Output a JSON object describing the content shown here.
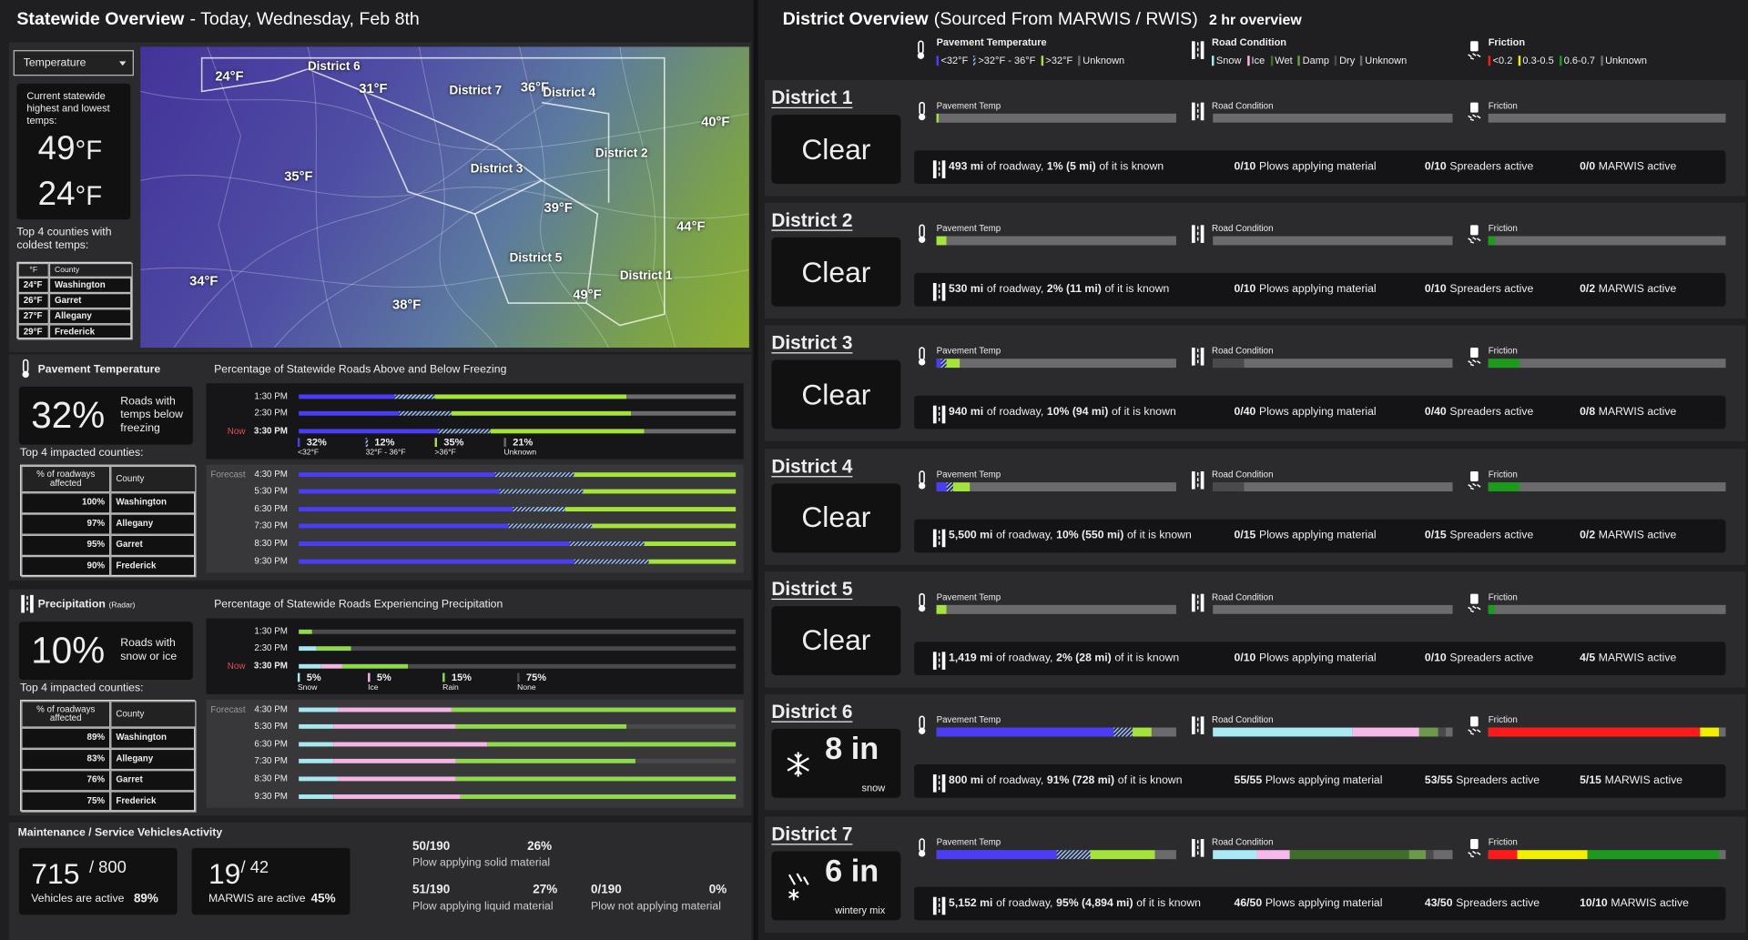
{
  "header": {
    "title": "Statewide Overview",
    "subtitle": "- Today, Wednesday, Feb 8th"
  },
  "temps": {
    "dropdown": "Temperature",
    "caption": "Current statewide highest and lowest temps:",
    "high": 49,
    "low": 24,
    "unit": "°F",
    "coldest_caption": "Top 4 counties with coldest temps:",
    "table": {
      "header": [
        "°F",
        "County"
      ],
      "rows": [
        [
          "24°F",
          "Washington"
        ],
        [
          "26°F",
          "Garret"
        ],
        [
          "27°F",
          "Allegany"
        ],
        [
          "29°F",
          "Frederick"
        ]
      ]
    }
  },
  "map": {
    "labels": [
      "24°F",
      "District 6",
      "31°F",
      "District 7",
      "36°F",
      "District 4",
      "40°F",
      "35°F",
      "District 2",
      "District 3",
      "39°F",
      "44°F",
      "District 5",
      "District 1",
      "34°F",
      "38°F",
      "49°F"
    ]
  },
  "pavement": {
    "title": "Pavement Temperature",
    "stat": 32,
    "stat_unit": "%",
    "stat_caption": "Roads with temps below freezing",
    "counties_caption": "Top 4 impacted counties:",
    "table": {
      "header": [
        "% of roadways affected",
        "County"
      ],
      "rows": [
        [
          "100%",
          "Washington"
        ],
        [
          "97%",
          "Allegany"
        ],
        [
          "95%",
          "Garret"
        ],
        [
          "90%",
          "Frederick"
        ]
      ]
    },
    "chart": {
      "type": "bar",
      "title": "Percentage of Statewide Roads Above and Below Freezing",
      "now": "Now",
      "forecast": "Forecast",
      "categories": [
        "1:30 PM",
        "2:30 PM",
        "3:30 PM",
        "4:30 PM",
        "5:30 PM",
        "6:30 PM",
        "7:30 PM",
        "8:30 PM",
        "9:30 PM"
      ],
      "series": [
        {
          "name": "<32°F",
          "color": "#4a3df5",
          "values": [
            22,
            23,
            32,
            45,
            46,
            49,
            48,
            62,
            63
          ],
          "value_labels": [
            null,
            null,
            "32%",
            null,
            null,
            null,
            null,
            null,
            null
          ]
        },
        {
          "name": "32°F - 36°F",
          "color": "#9ec1e6",
          "pattern": "hatch",
          "values": [
            9,
            12,
            12,
            18,
            19,
            12,
            19,
            17,
            17
          ],
          "value_labels": [
            null,
            null,
            "12%",
            null,
            null,
            null,
            null,
            null,
            null
          ]
        },
        {
          "name": ">36°F",
          "color": "#a4e33a",
          "values": [
            44,
            41,
            35,
            37,
            35,
            39,
            33,
            21,
            20
          ],
          "value_labels": [
            null,
            null,
            "35%",
            null,
            null,
            null,
            null,
            null,
            null
          ]
        },
        {
          "name": "Unknown",
          "color": "#6b6b6e",
          "values": [
            25,
            24,
            21,
            0,
            0,
            0,
            0,
            0,
            0
          ],
          "value_labels": [
            null,
            null,
            "21%",
            null,
            null,
            null,
            null,
            null,
            null
          ]
        }
      ]
    }
  },
  "precipitation": {
    "title": "Precipitation",
    "title_note": "(Radar)",
    "stat": 10,
    "stat_unit": "%",
    "stat_caption": "Roads with snow or ice",
    "counties_caption": "Top 4 impacted counties:",
    "table": {
      "header": [
        "% of roadways affected",
        "County"
      ],
      "rows": [
        [
          "89%",
          "Washington"
        ],
        [
          "83%",
          "Allegany"
        ],
        [
          "76%",
          "Garret"
        ],
        [
          "75%",
          "Frederick"
        ]
      ]
    },
    "chart": {
      "type": "bar",
      "title": "Percentage of Statewide Roads Experiencing Precipitation",
      "now": "Now",
      "forecast": "Forecast",
      "categories": [
        "1:30 PM",
        "2:30 PM",
        "3:30 PM",
        "4:30 PM",
        "5:30 PM",
        "6:30 PM",
        "7:30 PM",
        "8:30 PM",
        "9:30 PM"
      ],
      "series": [
        {
          "name": "Snow",
          "color": "#a8e6f0",
          "values": [
            0,
            4,
            5,
            9,
            8,
            8,
            8,
            9,
            8
          ],
          "value_labels": [
            null,
            null,
            "5%",
            null,
            null,
            null,
            null,
            null,
            null
          ]
        },
        {
          "name": "Ice",
          "color": "#f4b4e4",
          "values": [
            0,
            0,
            5,
            26,
            28,
            35,
            28,
            27,
            29
          ],
          "value_labels": [
            null,
            null,
            "5%",
            null,
            null,
            null,
            null,
            null,
            null
          ]
        },
        {
          "name": "Rain",
          "color": "#8fd94a",
          "values": [
            3,
            8,
            15,
            65,
            39,
            57,
            41,
            64,
            63
          ],
          "value_labels": [
            null,
            null,
            "15%",
            null,
            null,
            null,
            null,
            null,
            null
          ]
        },
        {
          "name": "None",
          "color": "#4a4a4d",
          "values": [
            97,
            88,
            75,
            0,
            25,
            0,
            23,
            0,
            0
          ],
          "value_labels": [
            null,
            null,
            "75%",
            null,
            null,
            null,
            null,
            null,
            null
          ]
        }
      ]
    }
  },
  "maintenance": {
    "title": "Maintenance / Service VehiclesActivity",
    "vehicles": {
      "active": "715",
      "total": "/ 800",
      "caption": "Vehicles are active",
      "percent": "89%"
    },
    "marwis": {
      "active": "19",
      "total": "/ 42",
      "caption": "MARWIS are active",
      "percent": "45%"
    },
    "plows": [
      {
        "count": "50/190",
        "percent": "26%",
        "caption": "Plow applying solid material"
      },
      {
        "count": "51/190",
        "percent": "27%",
        "caption": "Plow applying liquid material"
      },
      {
        "count": "0/190",
        "percent": "0%",
        "caption": "Plow not applying material"
      }
    ]
  },
  "districts": {
    "title": "District Overview",
    "source": "(Sourced From MARWIS / RWIS)",
    "period": "2 hr overview",
    "legends": [
      {
        "title": "Pavement Temperature",
        "items": [
          {
            "name": "<32°F",
            "color": "#4a3df5"
          },
          {
            "name": ">32°F - 36°F",
            "color": "#9ec1e6",
            "pattern": "hatch"
          },
          {
            "name": ">32°F",
            "color": "#a4e33a"
          },
          {
            "name": "Unknown",
            "color": "#6b6b6e"
          }
        ]
      },
      {
        "title": "Road Condition",
        "items": [
          {
            "name": "Snow",
            "color": "#a8eaf5"
          },
          {
            "name": "Ice",
            "color": "#f7b8ec"
          },
          {
            "name": "Wet",
            "color": "#3f6e2a"
          },
          {
            "name": "Damp",
            "color": "#6a9a4a"
          },
          {
            "name": "Dry",
            "color": "#4a4a4d"
          },
          {
            "name": "Unknown",
            "color": "#6b6b6e"
          }
        ]
      },
      {
        "title": "Friction",
        "items": [
          {
            "name": "<0.2",
            "color": "#ff1a1a"
          },
          {
            "name": "0.3-0.5",
            "color": "#f2f000"
          },
          {
            "name": "0.6-0.7",
            "color": "#1c9a1c"
          },
          {
            "name": "Unknown",
            "color": "#6b6b6e"
          }
        ]
      }
    ],
    "bar_labels": [
      "Pavement Temp",
      "Road Condition",
      "Friction"
    ],
    "items": [
      {
        "name": "District 1",
        "status": "Clear",
        "bars": [
          [
            0,
            0,
            1,
            99
          ],
          [
            0,
            0,
            0,
            0,
            0,
            100
          ],
          [
            0,
            0,
            0,
            100
          ]
        ],
        "roadway": [
          "493 mi",
          "of roadway,",
          "1% (5 mi)",
          "of it is known"
        ],
        "counts": [
          [
            "0/10",
            "Plows applying material"
          ],
          [
            "0/10",
            "Spreaders active"
          ],
          [
            "0/0",
            "MARWIS active"
          ]
        ]
      },
      {
        "name": "District 2",
        "status": "Clear",
        "bars": [
          [
            0,
            0,
            4,
            96
          ],
          [
            0,
            0,
            0,
            0,
            0,
            100
          ],
          [
            0,
            0,
            3,
            97
          ]
        ],
        "roadway": [
          "530 mi",
          "of roadway,",
          "2% (11 mi)",
          "of it is known"
        ],
        "counts": [
          [
            "0/10",
            "Plows applying material"
          ],
          [
            "0/10",
            "Spreaders active"
          ],
          [
            "0/2",
            "MARWIS active"
          ]
        ]
      },
      {
        "name": "District 3",
        "status": "Clear",
        "bars": [
          [
            2,
            2,
            6,
            90
          ],
          [
            0,
            0,
            0,
            0,
            13,
            87
          ],
          [
            0,
            0,
            13,
            87
          ]
        ],
        "roadway": [
          "940 mi",
          "of roadway,",
          "10% (94 mi)",
          "of it is known"
        ],
        "counts": [
          [
            "0/40",
            "Plows applying material"
          ],
          [
            "0/40",
            "Spreaders active"
          ],
          [
            "0/8",
            "MARWIS active"
          ]
        ]
      },
      {
        "name": "District 4",
        "status": "Clear",
        "bars": [
          [
            4,
            3,
            7,
            86
          ],
          [
            0,
            0,
            0,
            0,
            13,
            87
          ],
          [
            0,
            0,
            13,
            87
          ]
        ],
        "roadway": [
          "5,500 mi",
          "of roadway,",
          "10% (550 mi)",
          "of it is known"
        ],
        "counts": [
          [
            "0/15",
            "Plows applying material"
          ],
          [
            "0/15",
            "Spreaders active"
          ],
          [
            "0/2",
            "MARWIS active"
          ]
        ]
      },
      {
        "name": "District 5",
        "status": "Clear",
        "bars": [
          [
            0,
            0,
            4,
            96
          ],
          [
            0,
            0,
            0,
            0,
            0,
            100
          ],
          [
            0,
            0,
            3,
            97
          ]
        ],
        "roadway": [
          "1,419 mi",
          "of roadway,",
          "2% (28 mi)",
          "of it is known"
        ],
        "counts": [
          [
            "0/10",
            "Plows applying material"
          ],
          [
            "0/10",
            "Spreaders active"
          ],
          [
            "4/5",
            "MARWIS active"
          ]
        ]
      },
      {
        "name": "District 6",
        "status": {
          "amount": "8 in",
          "kind": "snow"
        },
        "bars": [
          [
            74,
            8,
            8,
            10
          ],
          [
            58,
            28,
            0,
            8,
            3,
            3
          ],
          [
            89,
            8,
            0,
            3
          ]
        ],
        "roadway": [
          "800 mi",
          "of roadway,",
          "91% (728 mi)",
          "of it is known"
        ],
        "counts": [
          [
            "55/55",
            "Plows applying material"
          ],
          [
            "53/55",
            "Spreaders active"
          ],
          [
            "5/15",
            "MARWIS active"
          ]
        ]
      },
      {
        "name": "District 7",
        "status": {
          "amount": "6 in",
          "kind": "wintery mix"
        },
        "bars": [
          [
            50,
            14,
            27,
            9
          ],
          [
            18,
            14,
            50,
            7,
            3,
            8
          ],
          [
            12,
            30,
            55,
            3
          ]
        ],
        "roadway": [
          "5,152 mi",
          "of roadway,",
          "95% (4,894 mi)",
          "of it is known"
        ],
        "counts": [
          [
            "46/50",
            "Plows applying material"
          ],
          [
            "43/50",
            "Spreaders active"
          ],
          [
            "10/10",
            "MARWIS active"
          ]
        ]
      }
    ]
  }
}
